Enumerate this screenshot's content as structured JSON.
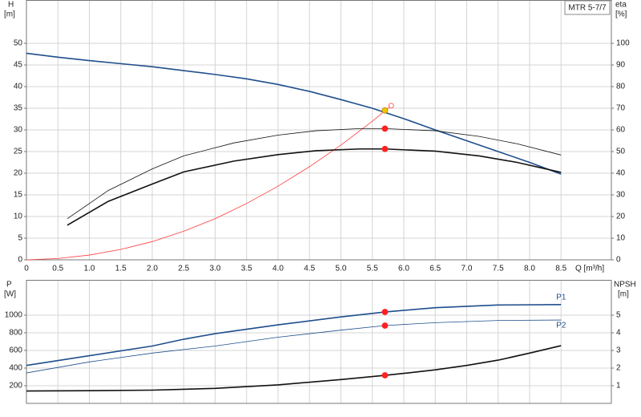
{
  "chart_data": [
    {
      "type": "line",
      "title": "MTR 5-7/7",
      "ylabel": "H",
      "yunit": "[m]",
      "y2label": "eta",
      "y2unit": "[%]",
      "xlabel": "Q [m³/h]",
      "xlim": [
        0,
        9.3
      ],
      "ylim": [
        0,
        60
      ],
      "y2lim": [
        0,
        120
      ],
      "grid": true,
      "xticks": [
        0,
        0.5,
        {
          "value": 1,
          "label": "1.0"
        },
        1.5,
        {
          "value": 2,
          "label": "2.0"
        },
        2.5,
        {
          "value": 3,
          "label": "3.0"
        },
        3.5,
        {
          "value": 4,
          "label": "4.0"
        },
        4.5,
        {
          "value": 5,
          "label": "5.0"
        },
        5.5,
        {
          "value": 6,
          "label": "6.0"
        },
        6.5,
        {
          "value": 7,
          "label": "7.0"
        },
        7.5,
        {
          "value": 8,
          "label": "8.0"
        },
        8.5
      ],
      "yticks": [
        0,
        5,
        10,
        15,
        20,
        25,
        30,
        35,
        40,
        45,
        50
      ],
      "y2ticks": [
        0,
        10,
        20,
        30,
        40,
        50,
        60,
        70,
        80,
        90,
        100
      ],
      "series": [
        {
          "color": "#1f4e8c",
          "width": 1.6,
          "axis": "y",
          "x": [
            0,
            0.5,
            1,
            1.5,
            2,
            2.5,
            3,
            3.5,
            4,
            4.5,
            5,
            5.5,
            6,
            6.5,
            7,
            7.5,
            8,
            8.5
          ],
          "values": [
            47.7,
            46.8,
            46,
            45.3,
            44.6,
            43.7,
            42.8,
            41.8,
            40.5,
            38.9,
            37,
            35,
            32.6,
            30,
            27.5,
            25,
            22.5,
            19.8
          ]
        },
        {
          "color": "#ff3a3a",
          "width": 0.8,
          "axis": "y",
          "x": [
            0,
            0.5,
            1,
            1.5,
            2,
            2.5,
            3,
            3.5,
            4,
            4.5,
            5,
            5.5,
            5.8
          ],
          "values": [
            0,
            0.3,
            1.1,
            2.4,
            4.2,
            6.6,
            9.5,
            13,
            17,
            21.5,
            26.5,
            32,
            35.6
          ]
        },
        {
          "color": "#111111",
          "width": 0.8,
          "axis": "y2",
          "x": [
            0.65,
            1.3,
            2,
            2.5,
            3.3,
            4,
            4.6,
            5.3,
            5.7,
            6.5,
            7.2,
            7.8,
            8.5
          ],
          "values": [
            19,
            32,
            42,
            48,
            54,
            57.6,
            59.6,
            60.6,
            60.6,
            59.6,
            57,
            53.6,
            48.4
          ]
        },
        {
          "color": "#111111",
          "width": 1.6,
          "axis": "y2",
          "x": [
            0.65,
            1.3,
            2,
            2.5,
            3.3,
            4,
            4.6,
            5.3,
            5.7,
            6.5,
            7.2,
            7.8,
            8.5
          ],
          "values": [
            16,
            27,
            35,
            40.6,
            45.6,
            48.6,
            50.4,
            51.2,
            51.2,
            50.2,
            48,
            45,
            40.4
          ]
        }
      ],
      "markers": [
        {
          "x": 5.7,
          "y": 34.5,
          "color": "#f5c400",
          "axis": "y",
          "filled": true
        },
        {
          "x": 5.8,
          "y": 35.6,
          "color": "#ff3a3a",
          "axis": "y",
          "filled": false
        },
        {
          "x": 5.7,
          "y": 60.6,
          "color": "#ff2020",
          "axis": "y2",
          "filled": true
        },
        {
          "x": 5.7,
          "y": 51.2,
          "color": "#ff2020",
          "axis": "y2",
          "filled": true
        }
      ]
    },
    {
      "type": "line",
      "ylabel": "P",
      "yunit": "[W]",
      "y2label": "NPSH",
      "y2unit": "[m]",
      "xlim": [
        0,
        9.3
      ],
      "ylim": [
        0,
        1400
      ],
      "y2lim": [
        0,
        7
      ],
      "grid": true,
      "yticks": [
        200,
        400,
        600,
        800,
        1000
      ],
      "y2ticks": [
        1,
        2,
        3,
        4,
        5
      ],
      "series": [
        {
          "name": "P1",
          "color": "#1f4e8c",
          "width": 1.6,
          "axis": "y",
          "x": [
            0,
            1,
            2,
            2.5,
            3,
            4,
            5,
            5.7,
            6.5,
            7.5,
            8.5
          ],
          "values": [
            430,
            540,
            650,
            727,
            790,
            890,
            980,
            1036,
            1085,
            1115,
            1120
          ]
        },
        {
          "name": "P2",
          "color": "#1f4e8c",
          "width": 0.8,
          "axis": "y",
          "x": [
            0,
            1,
            2,
            3,
            4,
            5,
            5.7,
            6.5,
            7.5,
            8.5
          ],
          "values": [
            345,
            470,
            570,
            650,
            750,
            830,
            882,
            915,
            940,
            945
          ]
        },
        {
          "color": "#111111",
          "width": 1.6,
          "axis": "y2",
          "x": [
            0,
            1,
            2,
            2.5,
            3,
            4,
            5,
            5.7,
            6,
            6.5,
            7,
            7.5,
            8,
            8.5
          ],
          "values": [
            0.7,
            0.72,
            0.75,
            0.8,
            0.85,
            1.05,
            1.35,
            1.59,
            1.7,
            1.9,
            2.15,
            2.45,
            2.85,
            3.27
          ]
        }
      ],
      "markers": [
        {
          "x": 5.7,
          "y": 1036,
          "color": "#ff2020",
          "axis": "y",
          "filled": true
        },
        {
          "x": 5.7,
          "y": 882,
          "color": "#ff2020",
          "axis": "y",
          "filled": true
        },
        {
          "x": 5.7,
          "y": 1.59,
          "color": "#ff2020",
          "axis": "y2",
          "filled": true
        }
      ]
    }
  ]
}
